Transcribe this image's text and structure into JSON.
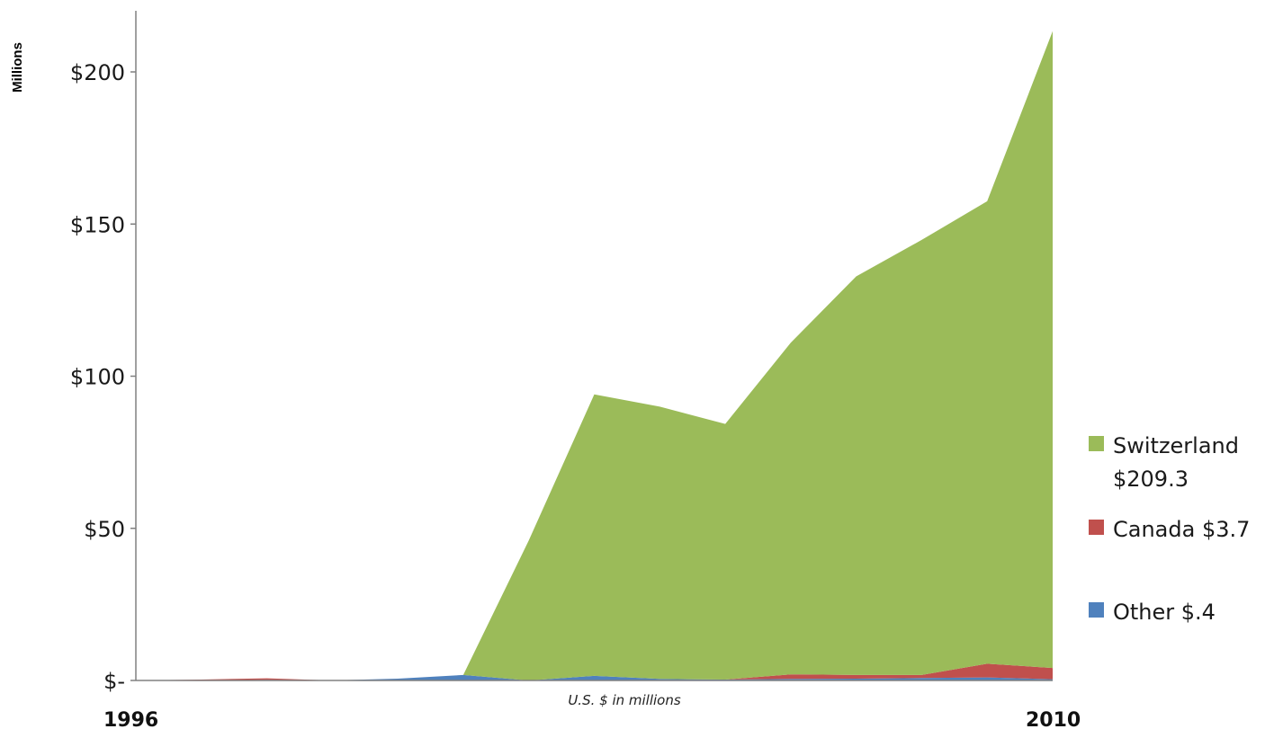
{
  "chart_data": {
    "type": "area",
    "stacked": true,
    "ylabel": "Millions",
    "note": "U.S. $ in millions",
    "ylim": [
      0,
      220
    ],
    "yticks": [
      {
        "value": 0,
        "label": "$-"
      },
      {
        "value": 50,
        "label": "$50"
      },
      {
        "value": 100,
        "label": "$100"
      },
      {
        "value": 150,
        "label": "$150"
      },
      {
        "value": 200,
        "label": "$200"
      }
    ],
    "x": [
      1996,
      1997,
      1998,
      1999,
      2000,
      2001,
      2002,
      2003,
      2004,
      2005,
      2006,
      2007,
      2008,
      2009,
      2010
    ],
    "x_first_label": "1996",
    "x_last_label": "2010",
    "grid": false,
    "legend_position": "right",
    "series": [
      {
        "name": "Other",
        "legend_label": "Other $.4",
        "color": "#4F81BD",
        "values": [
          0,
          0,
          0.2,
          0,
          0.6,
          1.8,
          0,
          1.5,
          0.5,
          0.3,
          0.5,
          0.6,
          0.8,
          1.0,
          0.4
        ]
      },
      {
        "name": "Canada",
        "legend_label": "Canada $3.7",
        "color": "#C0504D",
        "values": [
          0,
          0.3,
          0.5,
          0,
          0,
          0,
          0,
          0,
          0,
          0,
          1.5,
          1.2,
          1.0,
          4.5,
          3.7
        ]
      },
      {
        "name": "Switzerland",
        "legend_label": "Switzerland $209.3",
        "legend_lines": [
          "Switzerland",
          "$209.3"
        ],
        "color": "#9BBB59",
        "values": [
          0,
          0,
          0,
          0,
          0,
          0,
          46,
          92.5,
          89.5,
          84,
          109,
          131,
          143,
          152,
          209.3
        ]
      }
    ]
  }
}
